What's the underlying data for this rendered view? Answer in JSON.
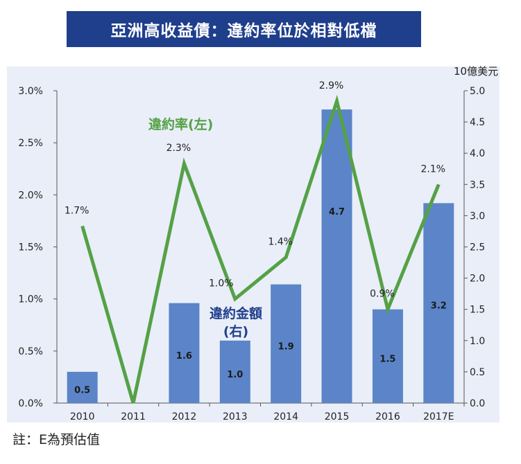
{
  "title": "亞洲高收益債：違約率位於相對低檔",
  "note": "註：E為預估值",
  "colors": {
    "banner": "#1f3f8c",
    "bar": "#5b85c8",
    "line": "#55a146",
    "panel": "#e9eef8"
  },
  "chart_data": {
    "type": "bar+line",
    "categories": [
      "2010",
      "2011",
      "2012",
      "2013",
      "2014",
      "2015",
      "2016",
      "2017E"
    ],
    "y_right_unit": "10億美元",
    "ylim_left": [
      0,
      3.0
    ],
    "ylim_right": [
      0,
      5.0
    ],
    "yticks_left": [
      "0.0%",
      "0.5%",
      "1.0%",
      "1.5%",
      "2.0%",
      "2.5%",
      "3.0%"
    ],
    "yticks_right": [
      "0.0",
      "0.5",
      "1.0",
      "1.5",
      "2.0",
      "2.5",
      "3.0",
      "3.5",
      "4.0",
      "4.5",
      "5.0"
    ],
    "series": [
      {
        "name": "違約金額",
        "name_suffix": "(右)",
        "type": "bar",
        "axis": "right",
        "values": [
          0.5,
          0,
          1.6,
          1.0,
          1.9,
          4.7,
          1.5,
          3.2
        ],
        "labels": [
          "0.5",
          "",
          "1.6",
          "1.0",
          "1.9",
          "4.7",
          "1.5",
          "3.2"
        ]
      },
      {
        "name": "違約率(左)",
        "type": "line",
        "axis": "left",
        "values": [
          1.7,
          0.0,
          2.3,
          1.0,
          1.4,
          2.9,
          0.9,
          2.1
        ],
        "labels": [
          "1.7%",
          "",
          "2.3%",
          "1.0%",
          "1.4%",
          "2.9%",
          "0.9%",
          "2.1%"
        ]
      }
    ]
  }
}
